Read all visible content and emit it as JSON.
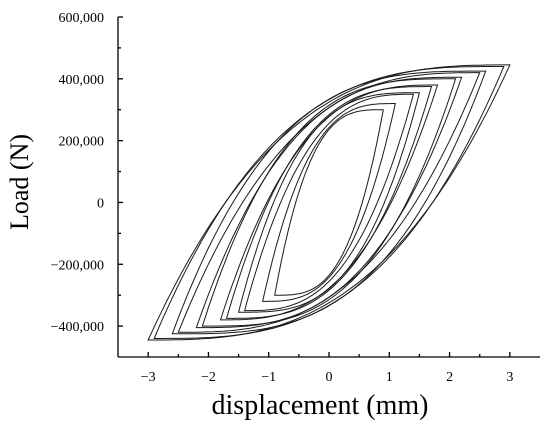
{
  "chart_data": {
    "type": "line",
    "title": "",
    "xlabel": "displacement (mm)",
    "ylabel": "Load (N)",
    "xlim": [
      -3.5,
      3.5
    ],
    "ylim": [
      -500000,
      600000
    ],
    "x_ticks": [
      -3,
      -2,
      -1,
      0,
      1,
      2,
      3
    ],
    "x_tick_labels": [
      "−3",
      "−2",
      "−1",
      "0",
      "1",
      "2",
      "3"
    ],
    "y_ticks": [
      -400000,
      -200000,
      0,
      200000,
      400000,
      600000
    ],
    "y_tick_labels": [
      "−400,000",
      "−200,000",
      "0",
      "200,000",
      "400,000",
      "600,000"
    ],
    "grid": false,
    "legend": "none",
    "line_color": "#1a1a1a",
    "series": [
      {
        "amplitude": 0.9,
        "peak_load": 300000
      },
      {
        "amplitude": 1.1,
        "peak_load": 320000
      },
      {
        "amplitude": 1.4,
        "peak_load": 350000
      },
      {
        "amplitude": 1.5,
        "peak_load": 355000
      },
      {
        "amplitude": 1.7,
        "peak_load": 375000
      },
      {
        "amplitude": 1.8,
        "peak_load": 380000
      },
      {
        "amplitude": 2.1,
        "peak_load": 400000
      },
      {
        "amplitude": 2.2,
        "peak_load": 405000
      },
      {
        "amplitude": 2.5,
        "peak_load": 420000
      },
      {
        "amplitude": 2.6,
        "peak_load": 425000
      },
      {
        "amplitude": 2.9,
        "peak_load": 440000
      },
      {
        "amplitude": 3.0,
        "peak_load": 445000
      }
    ]
  }
}
